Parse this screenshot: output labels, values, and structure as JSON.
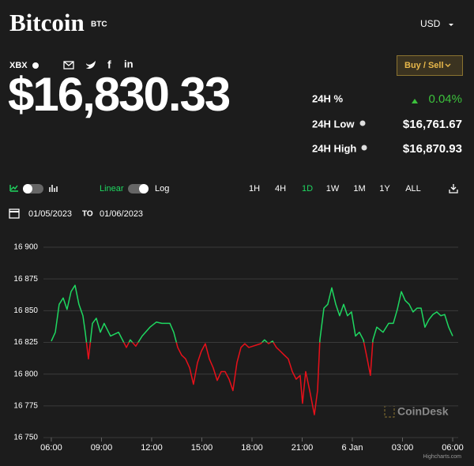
{
  "header": {
    "title": "Bitcoin",
    "symbol": "BTC",
    "currency": "USD",
    "exchange": "XBX",
    "button": "Buy / Sell"
  },
  "price": "$16,830.33",
  "stats": [
    {
      "label": "24H %",
      "value": "0.04%"
    },
    {
      "label": "24H Low",
      "value": "$16,761.67"
    },
    {
      "label": "24H High",
      "value": "$16,870.93"
    }
  ],
  "controls": {
    "linear": "Linear",
    "log": "Log",
    "ranges": [
      "1H",
      "4H",
      "1D",
      "1W",
      "1M",
      "1Y",
      "ALL"
    ],
    "active_range": 2
  },
  "dates": {
    "from": "01/05/2023",
    "to_label": "TO",
    "to": "01/06/2023"
  },
  "watermark": "CoinDesk",
  "credit": "Highcharts.com",
  "chart_data": {
    "type": "line",
    "x": [
      0,
      0.24,
      0.47,
      0.71,
      0.94,
      1.18,
      1.42,
      1.65,
      1.89,
      2.03,
      2.22,
      2.46,
      2.69,
      2.93,
      3.16,
      3.54,
      4.02,
      4.49,
      4.72,
      5.05,
      5.43,
      5.9,
      6.28,
      6.61,
      7.09,
      7.32,
      7.56,
      7.79,
      8.03,
      8.27,
      8.5,
      8.74,
      8.97,
      9.21,
      9.45,
      9.68,
      9.92,
      10.16,
      10.39,
      10.63,
      10.86,
      11.1,
      11.34,
      11.57,
      11.81,
      12.05,
      12.52,
      12.75,
      12.99,
      13.23,
      13.46,
      13.7,
      13.93,
      14.17,
      14.41,
      14.64,
      14.88,
      15.02,
      15.21,
      15.45,
      15.73,
      15.92,
      16.06,
      16.3,
      16.53,
      16.77,
      17.01,
      17.24,
      17.48,
      17.71,
      17.95,
      18.19,
      18.42,
      18.66,
      18.89,
      19.08,
      19.23,
      19.46,
      19.84,
      20.17,
      20.45,
      20.69,
      20.93,
      21.16,
      21.4,
      21.63,
      21.87,
      22.11,
      22.34,
      22.58,
      22.82,
      23.05,
      23.29,
      23.52,
      23.76,
      24
    ],
    "values": [
      16826,
      16833,
      16855,
      16860,
      16851,
      16865,
      16870,
      16855,
      16846,
      16833,
      16812,
      16840,
      16844,
      16833,
      16840,
      16830,
      16833,
      16821,
      16827,
      16822,
      16830,
      16837,
      16841,
      16840,
      16840,
      16833,
      16821,
      16815,
      16812,
      16805,
      16792,
      16809,
      16818,
      16824,
      16812,
      16805,
      16795,
      16802,
      16802,
      16796,
      16787,
      16809,
      16821,
      16824,
      16821,
      16822,
      16824,
      16827,
      16824,
      16826,
      16821,
      16818,
      16815,
      16812,
      16802,
      16796,
      16799,
      16777,
      16802,
      16787,
      16768,
      16787,
      16827,
      16852,
      16855,
      16868,
      16855,
      16846,
      16855,
      16846,
      16849,
      16830,
      16833,
      16827,
      16812,
      16799,
      16827,
      16837,
      16833,
      16840,
      16840,
      16851,
      16865,
      16858,
      16855,
      16849,
      16852,
      16852,
      16837,
      16843,
      16847,
      16849,
      16846,
      16847,
      16837,
      16830
    ],
    "threshold": 16825,
    "up_color": "#1ed760",
    "down_color": "#e8101a",
    "xlim": [
      -0.47,
      24.33
    ],
    "xticks": [
      {
        "value": 0,
        "label": "06:00"
      },
      {
        "value": 3,
        "label": "09:00"
      },
      {
        "value": 6,
        "label": "12:00"
      },
      {
        "value": 9,
        "label": "15:00"
      },
      {
        "value": 12,
        "label": "18:00"
      },
      {
        "value": 15,
        "label": "21:00"
      },
      {
        "value": 18,
        "label": "6 Jan"
      },
      {
        "value": 21,
        "label": "03:00"
      },
      {
        "value": 24,
        "label": "06:00"
      }
    ],
    "ylim": [
      16750,
      16900
    ],
    "yticks": [
      {
        "value": 16750,
        "label": "16 750"
      },
      {
        "value": 16775,
        "label": "16 775"
      },
      {
        "value": 16800,
        "label": "16 800"
      },
      {
        "value": 16825,
        "label": "16 825"
      },
      {
        "value": 16850,
        "label": "16 850"
      },
      {
        "value": 16875,
        "label": "16 875"
      },
      {
        "value": 16900,
        "label": "16 900"
      }
    ],
    "grid": true
  }
}
